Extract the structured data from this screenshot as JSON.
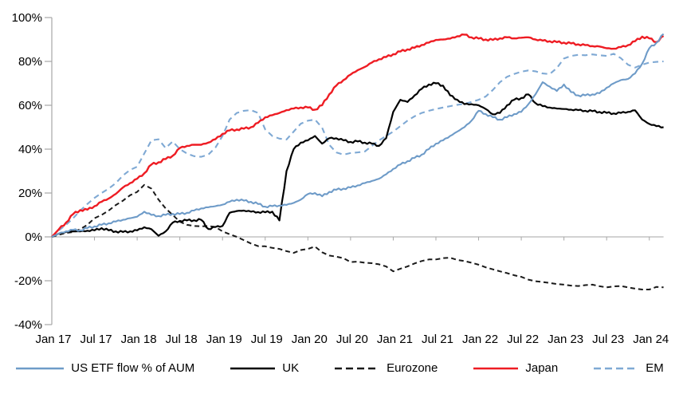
{
  "chart_data": {
    "type": "line",
    "title": "",
    "legend_position": "bottom",
    "grid": false,
    "zero_line": true,
    "x_axis": {
      "label": "",
      "tick_labels": [
        "Jan 17",
        "Jul 17",
        "Jan 18",
        "Jul 18",
        "Jan 19",
        "Jul 19",
        "Jan 20",
        "Jul 20",
        "Jan 21",
        "Jul 21",
        "Jan 22",
        "Jul 22",
        "Jan 23",
        "Jul 23",
        "Jan 24"
      ],
      "tick_months": [
        0,
        6,
        12,
        18,
        24,
        30,
        36,
        42,
        48,
        54,
        60,
        66,
        72,
        78,
        84
      ],
      "range_start": "Jan 2017",
      "range_end": "Mar 2024",
      "cadence": "monthly",
      "n_points": 87
    },
    "y_axis": {
      "label": "",
      "unit": "%",
      "min": -40,
      "max": 100,
      "step": 20,
      "ticks": [
        100,
        80,
        60,
        40,
        20,
        0,
        -20,
        -40
      ],
      "tick_labels": [
        "100%",
        "80%",
        "60%",
        "40%",
        "20%",
        "0%",
        "-20%",
        "-40%"
      ]
    },
    "style": {
      "axis_color": "#A6A6A6",
      "text_color": "#000000",
      "background": "#FFFFFF"
    },
    "draw_order": [
      "eurozone",
      "em",
      "uk",
      "japan",
      "us"
    ],
    "series": [
      {
        "id": "us",
        "name": "US ETF flow % of AUM",
        "color": "#6E9BC8",
        "dashed": false,
        "dash": "",
        "width": 2.1,
        "values": [
          0,
          1.5,
          2.5,
          3.2,
          3.0,
          4.0,
          4.8,
          5.5,
          6.2,
          7.0,
          7.8,
          8.5,
          9.2,
          11.5,
          10.0,
          9.5,
          10.0,
          10.5,
          10.4,
          11.0,
          12.0,
          13.0,
          13.5,
          14.0,
          14.7,
          16.0,
          17.0,
          16.5,
          16.0,
          15.0,
          13.8,
          14.0,
          14.3,
          14.6,
          15.5,
          17.0,
          19.5,
          20.0,
          18.5,
          20.5,
          21.5,
          22.0,
          22.5,
          23.5,
          24.5,
          25.5,
          26.5,
          28.5,
          31.0,
          33.0,
          34.5,
          36.0,
          37.5,
          40.0,
          42.5,
          44.0,
          46.0,
          48.0,
          50.0,
          53.0,
          57.5,
          56.0,
          54.5,
          53.5,
          54.5,
          56.0,
          57.0,
          60.5,
          65.0,
          70.5,
          68.5,
          66.5,
          69.5,
          66.0,
          64.5,
          64.5,
          65.0,
          65.5,
          68.0,
          70.0,
          71.5,
          72.0,
          74.5,
          79.0,
          86.0,
          88.5,
          92.5
        ]
      },
      {
        "id": "uk",
        "name": "UK",
        "color": "#000000",
        "dashed": false,
        "dash": "",
        "width": 2.2,
        "values": [
          0,
          1.5,
          2.3,
          2.5,
          2.5,
          2.8,
          3.0,
          4.0,
          3.0,
          2.5,
          2.2,
          2.5,
          3.0,
          4.4,
          3.5,
          0.5,
          2.5,
          6.5,
          7.3,
          7.5,
          7.6,
          7.8,
          3.6,
          4.5,
          5.0,
          11.0,
          11.8,
          12.0,
          11.5,
          11.3,
          11.2,
          11.5,
          7.5,
          30.0,
          40.0,
          43.0,
          44.0,
          46.0,
          42.5,
          45.0,
          45.0,
          44.0,
          43.3,
          43.5,
          43.0,
          42.5,
          41.5,
          45.0,
          57.0,
          62.5,
          61.5,
          64.5,
          67.5,
          69.5,
          70.0,
          69.0,
          64.5,
          62.5,
          60.5,
          60.5,
          60.0,
          58.3,
          55.9,
          56.5,
          60.0,
          62.5,
          63.3,
          65.0,
          61.0,
          59.6,
          59.0,
          58.5,
          58.3,
          58.0,
          57.8,
          57.5,
          57.3,
          57.0,
          56.5,
          56.3,
          56.5,
          57.0,
          57.7,
          53.5,
          51.5,
          50.5,
          50.0
        ]
      },
      {
        "id": "eurozone",
        "name": "Eurozone",
        "color": "#1A1A1A",
        "dashed": true,
        "dash": "6 4",
        "width": 2.0,
        "values": [
          0,
          1.0,
          1.8,
          2.2,
          3.5,
          5.5,
          8.5,
          10.0,
          12.0,
          14.5,
          16.5,
          19.0,
          20.5,
          23.7,
          22.0,
          17.0,
          13.0,
          10.0,
          6.9,
          5.5,
          5.0,
          4.8,
          5.0,
          4.5,
          2.5,
          1.2,
          0.0,
          -1.5,
          -3.0,
          -4.2,
          -4.3,
          -5.0,
          -5.5,
          -6.5,
          -7.3,
          -6.0,
          -5.5,
          -4.4,
          -7.0,
          -8.5,
          -9.0,
          -9.7,
          -11.5,
          -11.3,
          -11.8,
          -12.0,
          -12.5,
          -13.5,
          -15.7,
          -14.5,
          -13.5,
          -12.1,
          -11.0,
          -10.3,
          -10.3,
          -9.7,
          -9.5,
          -10.5,
          -11.0,
          -11.8,
          -12.7,
          -13.9,
          -14.8,
          -15.7,
          -16.5,
          -17.5,
          -18.2,
          -19.5,
          -20.2,
          -20.6,
          -21.0,
          -21.5,
          -21.8,
          -22.2,
          -22.4,
          -22.0,
          -21.8,
          -22.5,
          -23.0,
          -22.6,
          -22.4,
          -23.0,
          -23.6,
          -24.0,
          -24.0,
          -22.8,
          -23.0
        ]
      },
      {
        "id": "japan",
        "name": "Japan",
        "color": "#EE1C23",
        "dashed": false,
        "dash": "",
        "width": 2.4,
        "values": [
          0,
          3.5,
          6.5,
          10.4,
          12.2,
          12.4,
          14.0,
          16.0,
          17.5,
          19.6,
          22.5,
          24.5,
          26.5,
          29.0,
          33.0,
          34.0,
          35.5,
          37.0,
          40.5,
          41.5,
          42.0,
          42.0,
          43.0,
          44.5,
          47.0,
          48.5,
          49.0,
          49.3,
          50.0,
          52.0,
          54.5,
          55.5,
          56.5,
          57.8,
          58.5,
          59.0,
          59.0,
          58.0,
          60.0,
          65.0,
          69.0,
          71.5,
          74.0,
          76.0,
          77.5,
          79.5,
          81.0,
          82.0,
          83.3,
          84.5,
          85.5,
          86.2,
          87.5,
          88.6,
          89.8,
          90.0,
          90.4,
          91.5,
          92.2,
          91.0,
          90.4,
          90.0,
          89.8,
          90.5,
          91.0,
          90.5,
          90.8,
          91.0,
          90.0,
          89.5,
          89.2,
          88.8,
          88.6,
          88.2,
          87.8,
          87.4,
          87.0,
          86.8,
          86.0,
          85.8,
          86.5,
          87.4,
          89.2,
          91.3,
          90.5,
          88.8,
          91.6
        ]
      },
      {
        "id": "em",
        "name": "EM",
        "color": "#7FA9D4",
        "dashed": true,
        "dash": "7 5",
        "width": 2.1,
        "values": [
          0,
          3.0,
          5.5,
          8.5,
          12.0,
          15.0,
          17.8,
          20.0,
          22.0,
          24.5,
          28.0,
          30.5,
          32.0,
          38.0,
          44.0,
          44.5,
          40.5,
          43.5,
          40.0,
          38.0,
          36.8,
          36.5,
          37.5,
          40.7,
          46.0,
          53.5,
          56.5,
          57.5,
          57.8,
          56.5,
          49.0,
          46.0,
          44.8,
          44.4,
          48.0,
          51.6,
          53.0,
          53.5,
          49.8,
          42.0,
          38.5,
          37.5,
          38.2,
          38.5,
          38.9,
          41.5,
          44.0,
          46.0,
          48.0,
          50.5,
          53.0,
          55.0,
          56.5,
          57.5,
          58.3,
          59.0,
          59.6,
          60.2,
          60.7,
          61.5,
          62.5,
          64.0,
          67.0,
          70.5,
          73.0,
          74.3,
          75.3,
          75.9,
          75.5,
          74.5,
          74.2,
          77.0,
          81.3,
          82.5,
          83.0,
          82.8,
          83.2,
          82.8,
          82.5,
          83.5,
          81.5,
          78.5,
          77.2,
          78.5,
          79.5,
          79.8,
          80.0
        ]
      }
    ]
  }
}
